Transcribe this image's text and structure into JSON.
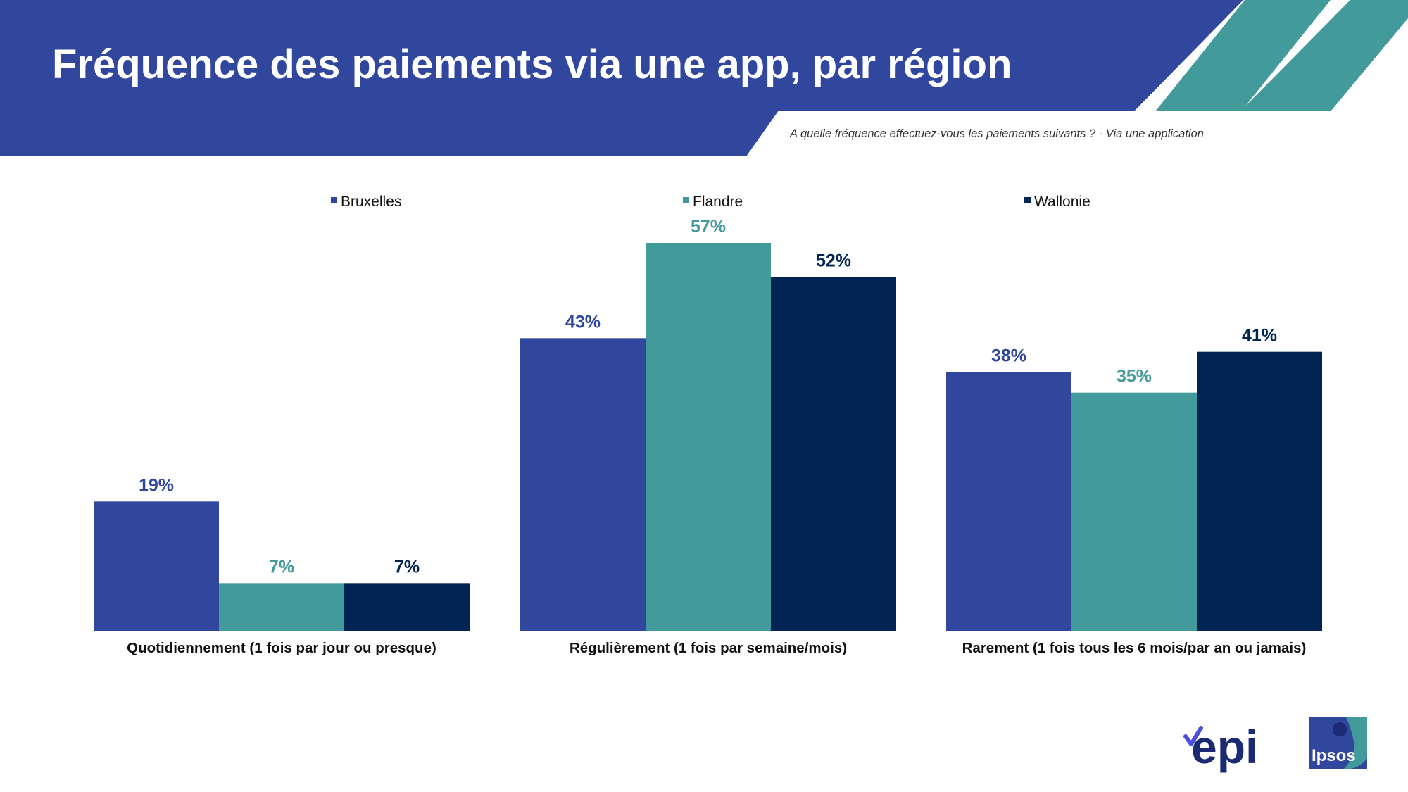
{
  "header": {
    "title": "Fréquence des paiements via une app, par région",
    "subtitle": "A quelle fréquence effectuez-vous les paiements suivants ? - Via une application"
  },
  "colors": {
    "banner": "#31479e",
    "accent_teal": "#429b9a",
    "bruxelles": "#31479e",
    "flandre": "#429b9a",
    "wallonie": "#012453"
  },
  "chart_data": {
    "type": "bar",
    "title": "Fréquence des paiements via une app, par région",
    "categories": [
      "Quotidiennement (1 fois par jour ou presque)",
      "Régulièrement (1 fois par semaine/mois)",
      "Rarement (1 fois tous les 6 mois/par an ou jamais)"
    ],
    "series": [
      {
        "name": "Bruxelles",
        "values": [
          19,
          43,
          38
        ],
        "labels": [
          "19%",
          "43%",
          "38%"
        ],
        "color": "#31479e"
      },
      {
        "name": "Flandre",
        "values": [
          7,
          57,
          35
        ],
        "labels": [
          "7%",
          "57%",
          "35%"
        ],
        "color": "#429b9a"
      },
      {
        "name": "Wallonie",
        "values": [
          7,
          52,
          41
        ],
        "labels": [
          "7%",
          "52%",
          "41%"
        ],
        "color": "#012453"
      }
    ],
    "unit": "%",
    "ylim": [
      0,
      57
    ],
    "grid": false,
    "legend": "top-center"
  },
  "logos": {
    "epi": "epi",
    "ipsos": "Ipsos"
  }
}
